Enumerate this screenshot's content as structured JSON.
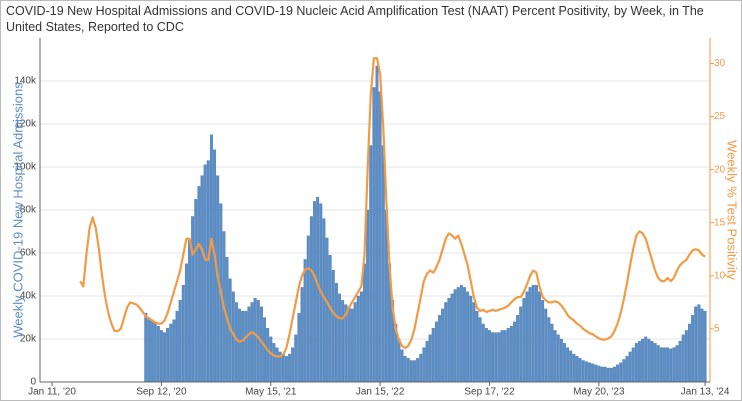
{
  "chart_data": {
    "type": "bar_line",
    "title": "COVID-19 New Hospital Admissions and COVID-19 Nucleic Acid Amplification Test (NAAT) Percent Positivity, by Week, in The United States, Reported to CDC",
    "y_label": "Weekly COVID-19 New Hospital Admissions",
    "y2_label": "Weekly % Test Positivity",
    "xlim": [
      "2019-12-15",
      "2024-01-24"
    ],
    "xticks": [
      {
        "value": "2020-01-11",
        "label": "Jan 11, '20"
      },
      {
        "value": "2020-09-12",
        "label": "Sep 12, '20"
      },
      {
        "value": "2021-05-15",
        "label": "May 15, '21"
      },
      {
        "value": "2022-01-15",
        "label": "Jan 15, '22"
      },
      {
        "value": "2022-09-17",
        "label": "Sep 17, '22"
      },
      {
        "value": "2023-05-20",
        "label": "May 20, '23"
      },
      {
        "value": "2024-01-13",
        "label": "Jan 13, '24"
      }
    ],
    "ylim": [
      0,
      160000
    ],
    "yticks": [
      0,
      {
        "value": 20000,
        "label": "20k"
      },
      {
        "value": 40000,
        "label": "40k"
      },
      {
        "value": 60000,
        "label": "60k"
      },
      {
        "value": 80000,
        "label": "80k"
      },
      {
        "value": 100000,
        "label": "100k"
      },
      {
        "value": 120000,
        "label": "120k"
      },
      {
        "value": 140000,
        "label": "140k"
      }
    ],
    "y2lim": [
      0,
      32.4
    ],
    "y2ticks": [
      5,
      10,
      15,
      20,
      25,
      30
    ],
    "grid": true,
    "x": [
      "2020-03-14",
      "2020-03-21",
      "2020-03-28",
      "2020-04-04",
      "2020-04-11",
      "2020-04-18",
      "2020-04-25",
      "2020-05-02",
      "2020-05-09",
      "2020-05-16",
      "2020-05-23",
      "2020-05-30",
      "2020-06-06",
      "2020-06-13",
      "2020-06-20",
      "2020-06-27",
      "2020-07-04",
      "2020-07-11",
      "2020-07-18",
      "2020-07-25",
      "2020-08-01",
      "2020-08-08",
      "2020-08-15",
      "2020-08-22",
      "2020-08-29",
      "2020-09-05",
      "2020-09-12",
      "2020-09-19",
      "2020-09-26",
      "2020-10-03",
      "2020-10-10",
      "2020-10-17",
      "2020-10-24",
      "2020-10-31",
      "2020-11-07",
      "2020-11-14",
      "2020-11-21",
      "2020-11-28",
      "2020-12-05",
      "2020-12-12",
      "2020-12-19",
      "2020-12-26",
      "2021-01-02",
      "2021-01-09",
      "2021-01-16",
      "2021-01-23",
      "2021-01-30",
      "2021-02-06",
      "2021-02-13",
      "2021-02-20",
      "2021-02-27",
      "2021-03-06",
      "2021-03-13",
      "2021-03-20",
      "2021-03-27",
      "2021-04-03",
      "2021-04-10",
      "2021-04-17",
      "2021-04-24",
      "2021-05-01",
      "2021-05-08",
      "2021-05-15",
      "2021-05-22",
      "2021-05-29",
      "2021-06-05",
      "2021-06-12",
      "2021-06-19",
      "2021-06-26",
      "2021-07-03",
      "2021-07-10",
      "2021-07-17",
      "2021-07-24",
      "2021-07-31",
      "2021-08-07",
      "2021-08-14",
      "2021-08-21",
      "2021-08-28",
      "2021-09-04",
      "2021-09-11",
      "2021-09-18",
      "2021-09-25",
      "2021-10-02",
      "2021-10-09",
      "2021-10-16",
      "2021-10-23",
      "2021-10-30",
      "2021-11-06",
      "2021-11-13",
      "2021-11-20",
      "2021-11-27",
      "2021-12-04",
      "2021-12-11",
      "2021-12-18",
      "2021-12-25",
      "2022-01-01",
      "2022-01-08",
      "2022-01-15",
      "2022-01-22",
      "2022-01-29",
      "2022-02-05",
      "2022-02-12",
      "2022-02-19",
      "2022-02-26",
      "2022-03-05",
      "2022-03-12",
      "2022-03-19",
      "2022-03-26",
      "2022-04-02",
      "2022-04-09",
      "2022-04-16",
      "2022-04-23",
      "2022-04-30",
      "2022-05-07",
      "2022-05-14",
      "2022-05-21",
      "2022-05-28",
      "2022-06-04",
      "2022-06-11",
      "2022-06-18",
      "2022-06-25",
      "2022-07-02",
      "2022-07-09",
      "2022-07-16",
      "2022-07-23",
      "2022-07-30",
      "2022-08-06",
      "2022-08-13",
      "2022-08-20",
      "2022-08-27",
      "2022-09-03",
      "2022-09-10",
      "2022-09-17",
      "2022-09-24",
      "2022-10-01",
      "2022-10-08",
      "2022-10-15",
      "2022-10-22",
      "2022-10-29",
      "2022-11-05",
      "2022-11-12",
      "2022-11-19",
      "2022-11-26",
      "2022-12-03",
      "2022-12-10",
      "2022-12-17",
      "2022-12-24",
      "2022-12-31",
      "2023-01-07",
      "2023-01-14",
      "2023-01-21",
      "2023-01-28",
      "2023-02-04",
      "2023-02-11",
      "2023-02-18",
      "2023-02-25",
      "2023-03-04",
      "2023-03-11",
      "2023-03-18",
      "2023-03-25",
      "2023-04-01",
      "2023-04-08",
      "2023-04-15",
      "2023-04-22",
      "2023-04-29",
      "2023-05-06",
      "2023-05-13",
      "2023-05-20",
      "2023-05-27",
      "2023-06-03",
      "2023-06-10",
      "2023-06-17",
      "2023-06-24",
      "2023-07-01",
      "2023-07-08",
      "2023-07-15",
      "2023-07-22",
      "2023-07-29",
      "2023-08-05",
      "2023-08-12",
      "2023-08-19",
      "2023-08-26",
      "2023-09-02",
      "2023-09-09",
      "2023-09-16",
      "2023-09-23",
      "2023-09-30",
      "2023-10-07",
      "2023-10-14",
      "2023-10-21",
      "2023-10-28",
      "2023-11-04",
      "2023-11-11",
      "2023-11-18",
      "2023-11-25",
      "2023-12-02",
      "2023-12-09",
      "2023-12-16",
      "2023-12-23",
      "2023-12-30",
      "2024-01-06",
      "2024-01-13"
    ],
    "series": [
      {
        "name": "Weekly COVID-19 New Hospital Admissions",
        "color": "#5b8ec6",
        "values": [
          null,
          null,
          null,
          null,
          null,
          null,
          null,
          null,
          null,
          null,
          null,
          null,
          null,
          null,
          null,
          null,
          null,
          null,
          null,
          null,
          null,
          32000,
          30000,
          29000,
          28000,
          26000,
          24000,
          23000,
          25000,
          27000,
          29000,
          33000,
          38000,
          45000,
          55000,
          66000,
          77000,
          85000,
          91000,
          96000,
          101000,
          103000,
          115000,
          108000,
          96000,
          83000,
          70000,
          58000,
          48000,
          42000,
          37000,
          34000,
          33000,
          33000,
          35000,
          37000,
          39000,
          38000,
          35000,
          30000,
          25000,
          21000,
          18000,
          16000,
          14000,
          13000,
          12000,
          13000,
          16000,
          22000,
          32000,
          44000,
          57000,
          68000,
          77000,
          84000,
          86000,
          83000,
          76000,
          67000,
          59000,
          52000,
          46000,
          41000,
          38000,
          36000,
          35000,
          34000,
          37000,
          40000,
          42000,
          55000,
          80000,
          110000,
          137000,
          147000,
          135000,
          110000,
          80000,
          55000,
          38000,
          27000,
          20000,
          15000,
          12000,
          11000,
          10000,
          10000,
          11000,
          13000,
          16000,
          19000,
          22000,
          25000,
          28000,
          31000,
          34000,
          37000,
          39000,
          41000,
          43000,
          44000,
          45000,
          44000,
          42000,
          40000,
          37000,
          33000,
          30000,
          27000,
          25000,
          24000,
          23000,
          23000,
          23000,
          24000,
          24000,
          25000,
          26000,
          28000,
          31000,
          35000,
          39000,
          42000,
          44000,
          45000,
          45000,
          42000,
          38000,
          34000,
          30000,
          27000,
          24000,
          22000,
          20000,
          18000,
          16000,
          14500,
          13000,
          12000,
          11000,
          10000,
          9500,
          9000,
          8500,
          8000,
          7500,
          7000,
          7000,
          6500,
          6500,
          7000,
          8000,
          9000,
          10500,
          12000,
          14000,
          16000,
          18000,
          19000,
          20000,
          21000,
          20000,
          19000,
          18000,
          17000,
          16000,
          16000,
          16000,
          15500,
          16000,
          17000,
          19000,
          22000,
          24000,
          27000,
          31000,
          35000,
          36000,
          34000,
          33000
        ]
      },
      {
        "name": "Weekly % Test Positivity",
        "color": "#f39a45",
        "axis": "y2",
        "values": [
          9.5,
          9,
          12,
          14.5,
          15.5,
          14.5,
          12.5,
          10,
          8,
          6.5,
          5.5,
          4.8,
          4.8,
          5,
          6,
          7,
          7.5,
          7.4,
          7.3,
          7,
          6.6,
          6.2,
          6,
          5.8,
          5.6,
          5.5,
          5.5,
          5.8,
          6.5,
          7.5,
          8.5,
          9.5,
          10.5,
          12,
          13.5,
          13.5,
          12,
          12.5,
          13,
          12.5,
          11.5,
          11.5,
          13.5,
          12,
          10,
          8.5,
          7,
          6,
          5,
          4.5,
          4,
          3.8,
          3.9,
          4.2,
          4.5,
          4.7,
          4.5,
          4.2,
          3.8,
          3.4,
          3,
          2.7,
          2.5,
          2.4,
          2.4,
          2.6,
          3.2,
          4.5,
          6,
          7.5,
          9,
          10,
          10.6,
          10.7,
          10.5,
          10,
          9.2,
          8.5,
          8,
          7.5,
          7,
          6.5,
          6.2,
          6,
          6,
          6.3,
          7,
          7.5,
          8,
          8.5,
          9,
          12,
          20,
          27,
          30.5,
          30.5,
          29,
          24,
          17,
          11,
          7,
          5,
          4,
          3.4,
          3.2,
          3.4,
          4,
          5,
          6.5,
          8,
          9.5,
          10.2,
          10.5,
          10.3,
          10.8,
          11.5,
          12.5,
          13.5,
          14,
          13.8,
          13.5,
          13.8,
          13,
          12,
          11,
          9.5,
          8,
          7,
          6.7,
          6.8,
          6.6,
          6.7,
          6.8,
          6.7,
          6.8,
          6.9,
          7,
          7.2,
          7.5,
          7.8,
          8,
          8,
          8.5,
          9.2,
          10,
          10.5,
          10.3,
          9,
          8,
          7.7,
          7.5,
          7.5,
          7.6,
          7.5,
          7.2,
          6.8,
          6.3,
          6,
          5.8,
          5.5,
          5.3,
          5,
          4.8,
          4.6,
          4.5,
          4.3,
          4.1,
          4,
          4,
          4.1,
          4.3,
          4.8,
          5.5,
          6.5,
          7.8,
          9.3,
          11,
          12.5,
          13.8,
          14.2,
          14,
          13.5,
          12.5,
          11.5,
          10.5,
          9.8,
          9.5,
          9.5,
          9.8,
          9.5,
          9.8,
          10.5,
          11,
          11.3,
          11.5,
          12,
          12.4,
          12.5,
          12.4,
          12,
          11.8
        ]
      }
    ]
  }
}
